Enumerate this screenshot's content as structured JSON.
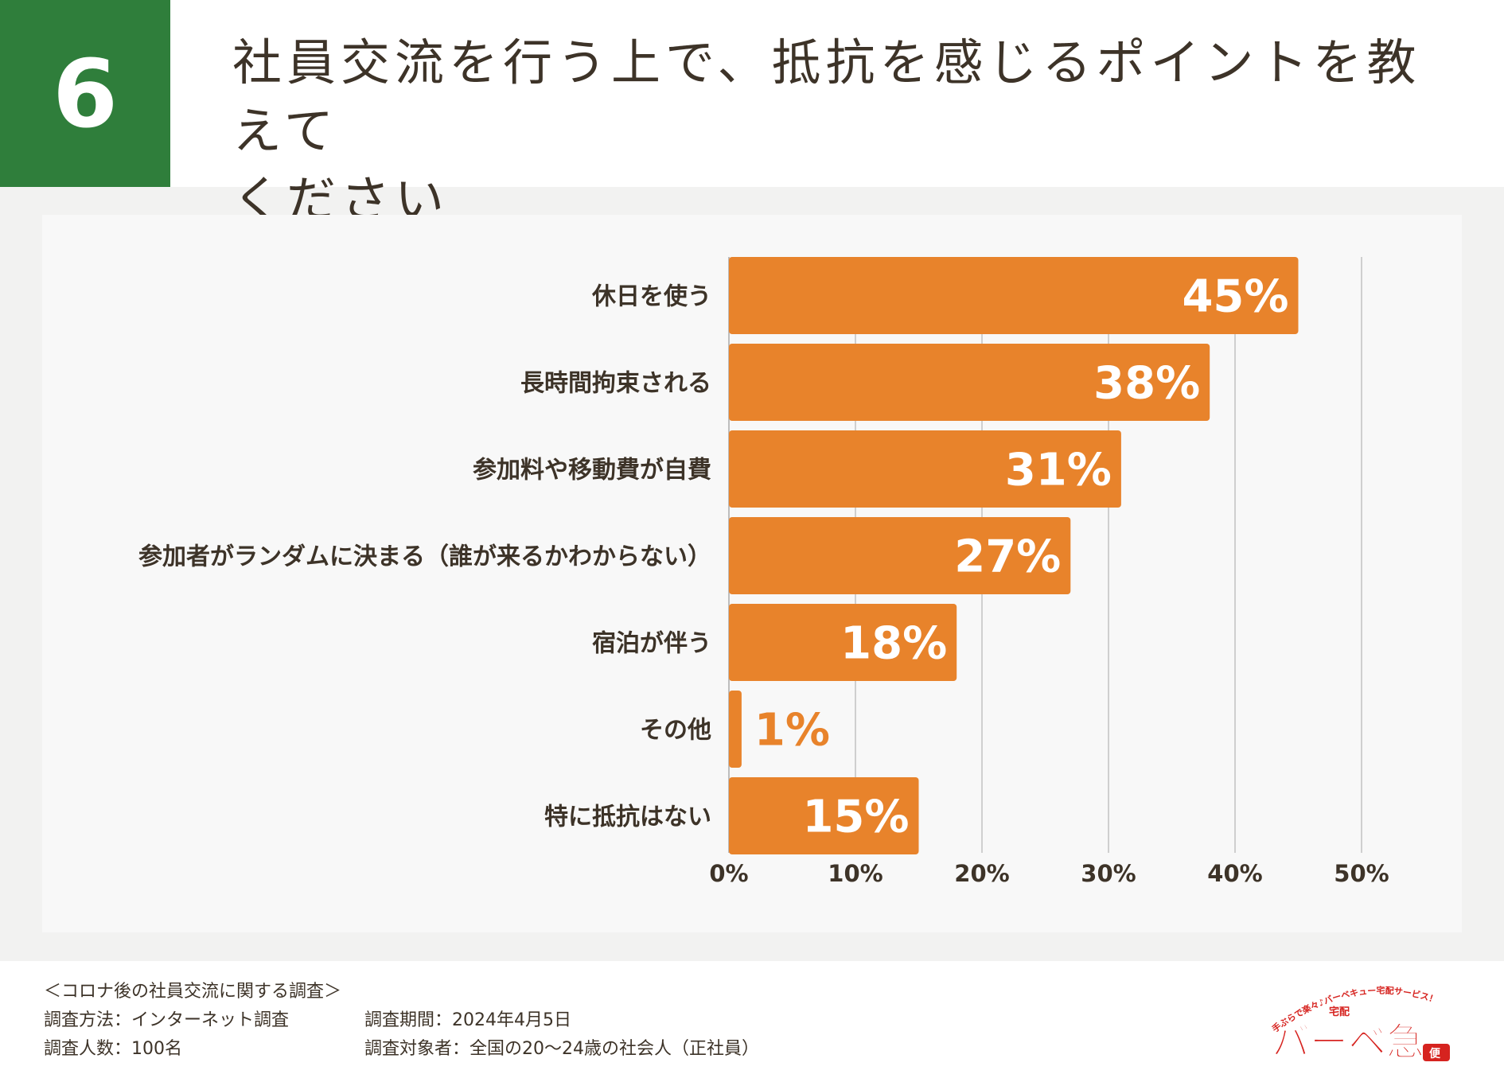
{
  "header": {
    "number": "6",
    "title_line1": "社員交流を行う上で、抵抗を感じるポイントを教えて",
    "title_line2": "ください"
  },
  "chart_data": {
    "type": "bar",
    "orientation": "horizontal",
    "categories": [
      "休日を使う",
      "長時間拘束される",
      "参加料や移動費が自費",
      "参加者がランダムに決まる（誰が来るかわからない）",
      "宿泊が伴う",
      "その他",
      "特に抵抗はない"
    ],
    "values": [
      45,
      38,
      31,
      27,
      18,
      1,
      15
    ],
    "value_labels": [
      "45%",
      "38%",
      "31%",
      "27%",
      "18%",
      "1%",
      "15%"
    ],
    "ticks": [
      "0%",
      "10%",
      "20%",
      "30%",
      "40%",
      "50%"
    ],
    "xlim": [
      0,
      50
    ],
    "grid": true,
    "bar_color": "#e8832b"
  },
  "footer": {
    "survey_title": "＜コロナ後の社員交流に関する調査＞",
    "method": "調査方法：インターネット調査",
    "period": "調査期間：2024年4月5日",
    "count": "調査人数：100名",
    "target": "調査対象者：全国の20〜24歳の社会人（正社員）"
  },
  "logo": {
    "tagline": "手ぶらで楽々♪バーベキュー宅配サービス！",
    "small": "宅配",
    "name": "バーベ急",
    "suffix": "便"
  }
}
